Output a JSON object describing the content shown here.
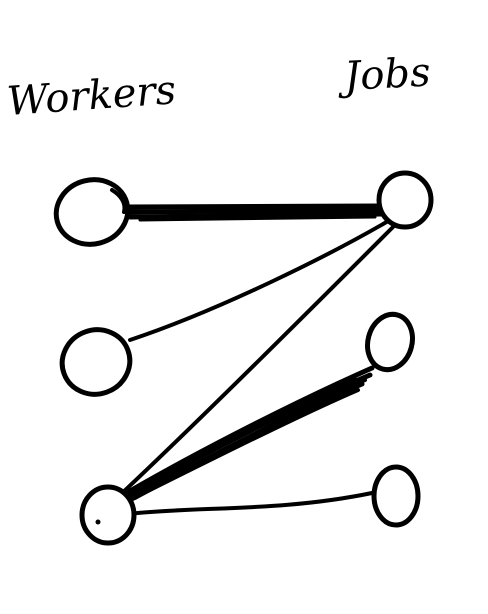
{
  "labels": {
    "workers": "Workers",
    "jobs": "Jobs"
  },
  "workers": [
    "worker-1",
    "worker-2",
    "worker-3"
  ],
  "jobs": [
    "job-1",
    "job-2",
    "job-3"
  ],
  "edges": [
    {
      "from": "worker-1",
      "to": "job-1",
      "weight": "heavy"
    },
    {
      "from": "worker-2",
      "to": "job-1",
      "weight": "thin"
    },
    {
      "from": "worker-3",
      "to": "job-1",
      "weight": "thin"
    },
    {
      "from": "worker-3",
      "to": "job-2",
      "weight": "heavy"
    },
    {
      "from": "worker-3",
      "to": "job-3",
      "weight": "thin"
    }
  ],
  "colors": {
    "ink": "#000000",
    "paper": "#ffffff"
  }
}
